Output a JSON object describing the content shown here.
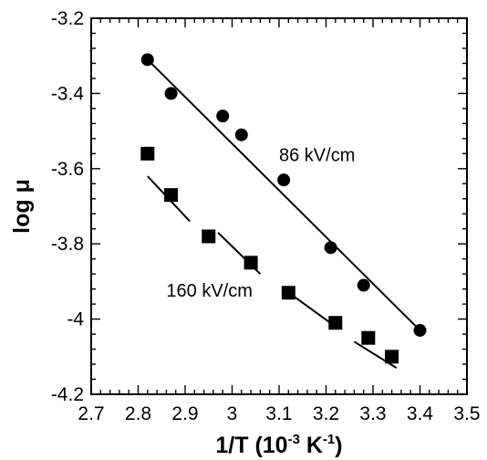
{
  "chart_data": {
    "type": "scatter",
    "title": "",
    "xlabel": "1/T (10-3 K-1)",
    "ylabel": "log μ",
    "xlim": [
      2.7,
      3.5
    ],
    "ylim": [
      -4.2,
      -3.2
    ],
    "xticks": [
      "2.7",
      "2.8",
      "2.9",
      "3",
      "3.1",
      "3.2",
      "3.3",
      "3.4",
      "3.5"
    ],
    "yticks": [
      "-3.2",
      "-3.4",
      "-3.6",
      "-3.8",
      "-4",
      "-4.2"
    ],
    "grid": false,
    "series": [
      {
        "name": "86 kV/cm",
        "marker": "circle",
        "x": [
          2.82,
          2.87,
          2.98,
          3.02,
          3.11,
          3.21,
          3.28,
          3.4
        ],
        "y": [
          -3.31,
          -3.4,
          -3.46,
          -3.51,
          -3.63,
          -3.81,
          -3.91,
          -4.03
        ],
        "fit": {
          "x": [
            2.82,
            3.4
          ],
          "y": [
            -3.31,
            -4.03
          ]
        }
      },
      {
        "name": "160 kV/cm",
        "marker": "square",
        "x": [
          2.82,
          2.87,
          2.95,
          3.04,
          3.12,
          3.22,
          3.29,
          3.34
        ],
        "y": [
          -3.56,
          -3.67,
          -3.78,
          -3.85,
          -3.93,
          -4.01,
          -4.05,
          -4.1
        ],
        "fit_segments": [
          {
            "x": [
              2.82,
              2.91
            ],
            "y": [
              -3.62,
              -3.74
            ]
          },
          {
            "x": [
              2.97,
              3.06
            ],
            "y": [
              -3.77,
              -3.88
            ]
          },
          {
            "x": [
              3.11,
              3.22
            ],
            "y": [
              -3.92,
              -4.02
            ]
          },
          {
            "x": [
              3.26,
              3.35
            ],
            "y": [
              -4.06,
              -4.13
            ]
          }
        ]
      }
    ],
    "annotations": [
      {
        "text": "86 kV/cm",
        "x": 3.1,
        "y": -3.58
      },
      {
        "text": "160 kV/cm",
        "x": 2.86,
        "y": -3.94
      }
    ]
  },
  "colors": {
    "ink": "#000000",
    "background": "#ffffff"
  }
}
